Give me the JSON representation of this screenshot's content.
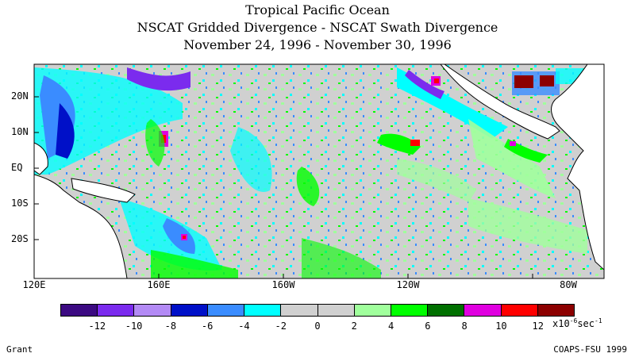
{
  "title": {
    "line1": "Tropical Pacific Ocean",
    "line2": "NSCAT Gridded Divergence - NSCAT Swath Divergence",
    "line3": "November 24, 1996 - November 30, 1996"
  },
  "map": {
    "latitude_labels": [
      "20N",
      "10N",
      "EQ",
      "10S",
      "20S"
    ],
    "longitude_labels": [
      "120E",
      "160E",
      "160W",
      "120W",
      "80W"
    ],
    "land_color": "#ffffff",
    "coastline_color": "#000000"
  },
  "colorbar": {
    "colors": [
      "#3c0a82",
      "#7b2bee",
      "#b38af5",
      "#0010c8",
      "#3a8cff",
      "#00ffff",
      "#d0d0d0",
      "#d0d0d0",
      "#a0ff9c",
      "#00ff00",
      "#007000",
      "#e000e0",
      "#ff0000",
      "#8c0000"
    ],
    "tick_labels": [
      "-12",
      "-10",
      "-8",
      "-6",
      "-4",
      "-2",
      "0",
      "2",
      "4",
      "6",
      "8",
      "10",
      "12"
    ],
    "units_prefix": "x10",
    "units_exponent": "-6",
    "units_suffix": "sec",
    "units_suffix_exponent": "-1"
  },
  "footer": {
    "author": "Grant",
    "credit": "COAPS-FSU 1999"
  }
}
